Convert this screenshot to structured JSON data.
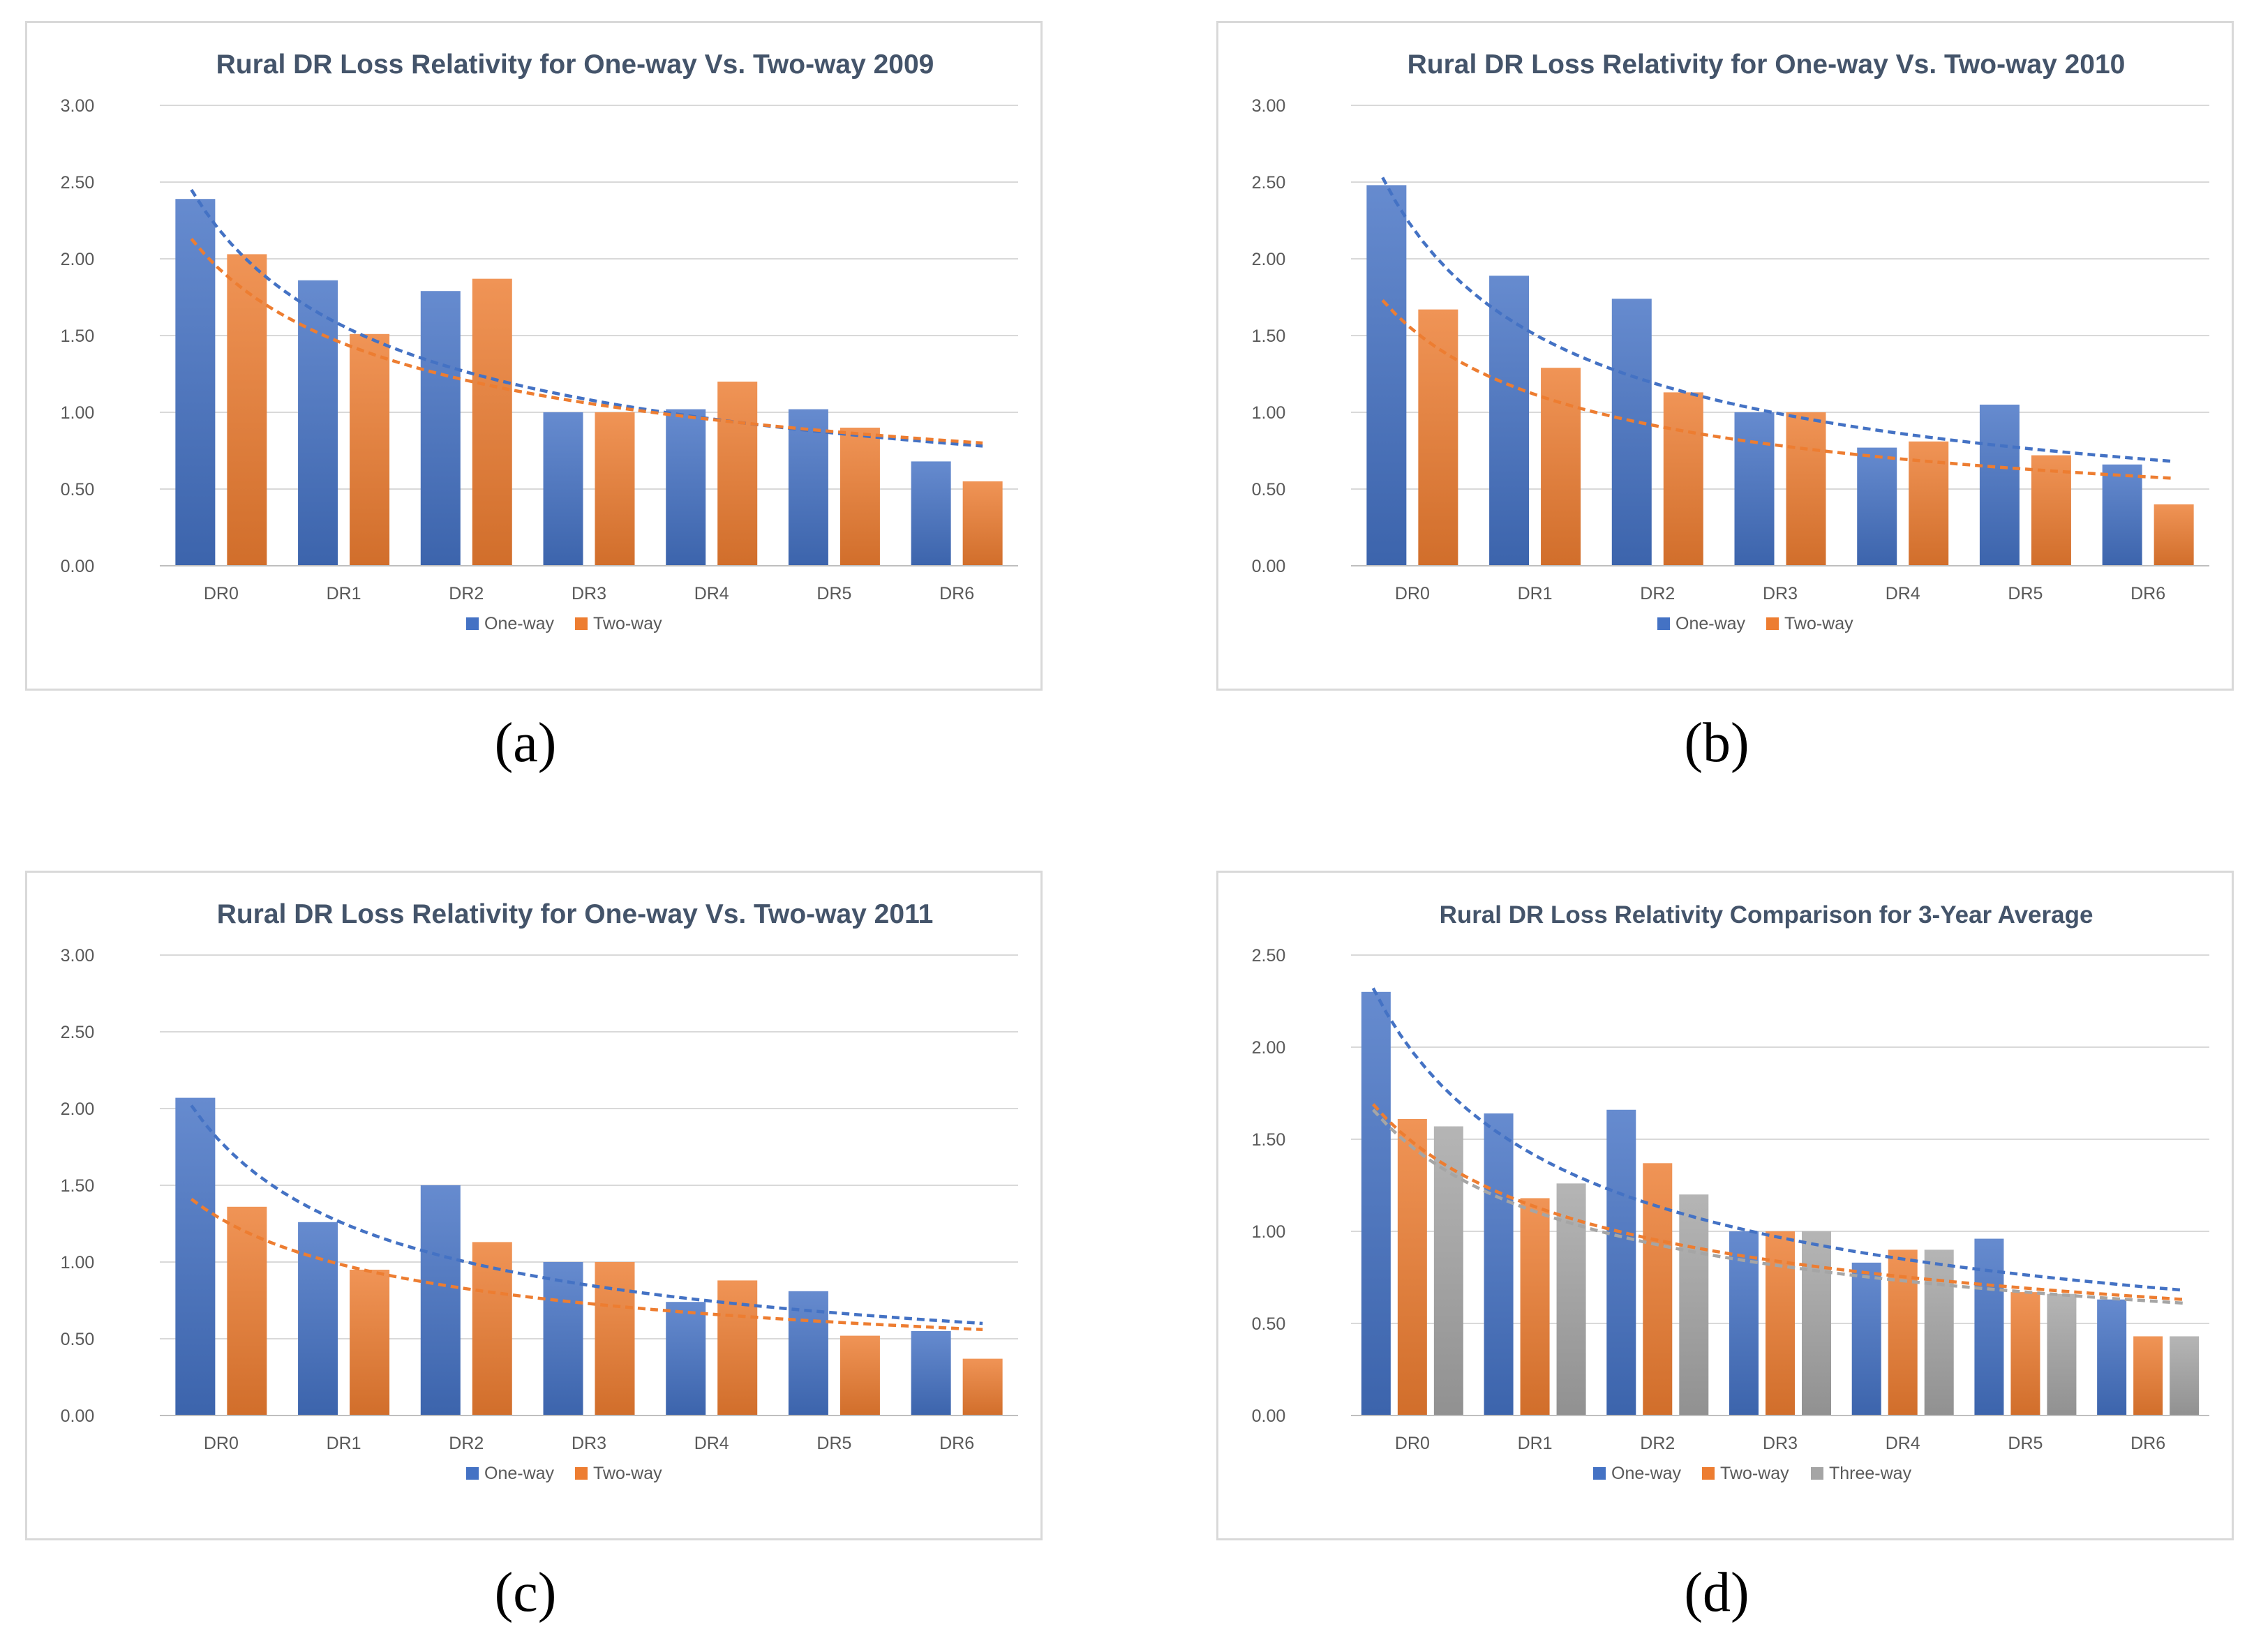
{
  "colors": {
    "one_way": "#4472C4",
    "two_way": "#ED7D31",
    "three_way": "#A5A5A5",
    "grid": "#d9d9d9",
    "text": "#595959",
    "title": "#44546A"
  },
  "charts": [
    {
      "caption": "(a)",
      "chart_data": {
        "type": "bar",
        "title": "Rural DR Loss Relativity for One-way Vs. Two-way 2009",
        "categories": [
          "DR0",
          "DR1",
          "DR2",
          "DR3",
          "DR4",
          "DR5",
          "DR6"
        ],
        "ylim": [
          0,
          3
        ],
        "yticks": [
          "0.00",
          "0.50",
          "1.00",
          "1.50",
          "2.00",
          "2.50",
          "3.00"
        ],
        "grid": true,
        "legend": "bottom",
        "series": [
          {
            "name": "One-way",
            "values": [
              2.39,
              1.86,
              1.79,
              1.0,
              1.02,
              1.02,
              0.68
            ],
            "trend": [
              2.45,
              0.78
            ]
          },
          {
            "name": "Two-way",
            "values": [
              2.03,
              1.51,
              1.87,
              1.0,
              1.2,
              0.9,
              0.55
            ],
            "trend": [
              2.13,
              0.8
            ]
          }
        ]
      }
    },
    {
      "caption": "(b)",
      "chart_data": {
        "type": "bar",
        "title": "Rural DR Loss Relativity for One-way Vs. Two-way 2010",
        "categories": [
          "DR0",
          "DR1",
          "DR2",
          "DR3",
          "DR4",
          "DR5",
          "DR6"
        ],
        "ylim": [
          0,
          3
        ],
        "yticks": [
          "0.00",
          "0.50",
          "1.00",
          "1.50",
          "2.00",
          "2.50",
          "3.00"
        ],
        "grid": true,
        "legend": "bottom",
        "series": [
          {
            "name": "One-way",
            "values": [
              2.48,
              1.89,
              1.74,
              1.0,
              0.77,
              1.05,
              0.66
            ],
            "trend": [
              2.53,
              0.68
            ]
          },
          {
            "name": "Two-way",
            "values": [
              1.67,
              1.29,
              1.13,
              1.0,
              0.81,
              0.72,
              0.4
            ],
            "trend": [
              1.73,
              0.57
            ]
          }
        ]
      }
    },
    {
      "caption": "(c)",
      "chart_data": {
        "type": "bar",
        "title": "Rural DR Loss Relativity for One-way Vs. Two-way 2011",
        "categories": [
          "DR0",
          "DR1",
          "DR2",
          "DR3",
          "DR4",
          "DR5",
          "DR6"
        ],
        "ylim": [
          0,
          3
        ],
        "yticks": [
          "0.00",
          "0.50",
          "1.00",
          "1.50",
          "2.00",
          "2.50",
          "3.00"
        ],
        "grid": true,
        "legend": "bottom",
        "series": [
          {
            "name": "One-way",
            "values": [
              2.07,
              1.26,
              1.5,
              1.0,
              0.74,
              0.81,
              0.55
            ],
            "trend": [
              2.02,
              0.6
            ]
          },
          {
            "name": "Two-way",
            "values": [
              1.36,
              0.95,
              1.13,
              1.0,
              0.88,
              0.52,
              0.37
            ],
            "trend": [
              1.41,
              0.56
            ]
          }
        ]
      }
    },
    {
      "caption": "(d)",
      "chart_data": {
        "type": "bar",
        "title": "Rural DR Loss Relativity Comparison for 3-Year Average",
        "categories": [
          "DR0",
          "DR1",
          "DR2",
          "DR3",
          "DR4",
          "DR5",
          "DR6"
        ],
        "ylim": [
          0,
          2.5
        ],
        "yticks": [
          "0.00",
          "0.50",
          "1.00",
          "1.50",
          "2.00",
          "2.50"
        ],
        "grid": true,
        "legend": "bottom",
        "series": [
          {
            "name": "One-way",
            "values": [
              2.3,
              1.64,
              1.66,
              1.0,
              0.83,
              0.96,
              0.63
            ],
            "trend": [
              2.32,
              0.68
            ]
          },
          {
            "name": "Two-way",
            "values": [
              1.61,
              1.18,
              1.37,
              1.0,
              0.9,
              0.67,
              0.43
            ],
            "trend": [
              1.69,
              0.63
            ]
          },
          {
            "name": "Three-way",
            "values": [
              1.57,
              1.26,
              1.2,
              1.0,
              0.9,
              0.66,
              0.43
            ],
            "trend": [
              1.66,
              0.61
            ]
          }
        ]
      }
    }
  ]
}
